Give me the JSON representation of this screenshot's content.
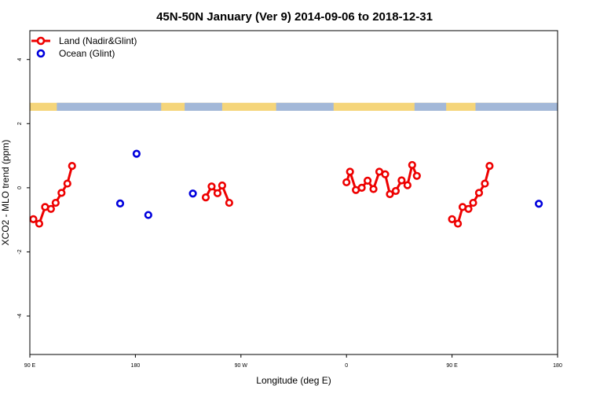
{
  "chart_data": {
    "type": "scatter",
    "title": "45N-50N January (Ver 9)   2014-09-06 to 2018-12-31",
    "xlabel": "Longitude (deg E)",
    "ylabel": "XCO2 - MLO trend (ppm)",
    "xlim": [
      90,
      540
    ],
    "ylim": [
      -5.2,
      4.9
    ],
    "x_ticks": [
      {
        "value": 90,
        "label": "90 E"
      },
      {
        "value": 180,
        "label": "180"
      },
      {
        "value": 270,
        "label": "90 W"
      },
      {
        "value": 360,
        "label": "0"
      },
      {
        "value": 450,
        "label": "90 E"
      },
      {
        "value": 540,
        "label": "180"
      }
    ],
    "y_ticks": [
      {
        "value": -4,
        "label": "-4"
      },
      {
        "value": -2,
        "label": "-2"
      },
      {
        "value": 0,
        "label": "0"
      },
      {
        "value": 2,
        "label": "2"
      },
      {
        "value": 4,
        "label": "4"
      }
    ],
    "legend_position": "top-left",
    "map_strip": {
      "y_range": [
        2.4,
        2.65
      ],
      "ocean_color": "#a3b8d8",
      "land_color": "#f5d57a"
    },
    "series": [
      {
        "name": "Land (Nadir&Glint)",
        "color": "#ee0000",
        "connected": true,
        "segments": [
          {
            "x": [
              93,
              98,
              103,
              108,
              112,
              117,
              122,
              126
            ],
            "y": [
              -0.98,
              -1.12,
              -0.6,
              -0.66,
              -0.47,
              -0.16,
              0.13,
              0.68
            ]
          },
          {
            "x": [
              240,
              245,
              250,
              254,
              260
            ],
            "y": [
              -0.3,
              0.04,
              -0.17,
              0.07,
              -0.47
            ]
          },
          {
            "x": [
              360,
              363,
              368,
              373,
              378,
              383,
              388,
              393,
              397,
              402,
              407,
              412,
              416,
              420
            ],
            "y": [
              0.17,
              0.5,
              -0.07,
              0.0,
              0.22,
              -0.04,
              0.5,
              0.42,
              -0.2,
              -0.1,
              0.23,
              0.08,
              0.71,
              0.37
            ]
          },
          {
            "x": [
              450,
              455,
              459,
              464,
              468,
              473,
              478,
              482
            ],
            "y": [
              -0.98,
              -1.12,
              -0.6,
              -0.66,
              -0.47,
              -0.16,
              0.13,
              0.68
            ]
          }
        ]
      },
      {
        "name": "Ocean (Glint)",
        "color": "#0000dd",
        "connected": false,
        "segments": [
          {
            "x": [
              167,
              181,
              191,
              229,
              524
            ],
            "y": [
              -0.49,
              1.06,
              -0.85,
              -0.18,
              -0.5
            ]
          }
        ]
      }
    ]
  }
}
